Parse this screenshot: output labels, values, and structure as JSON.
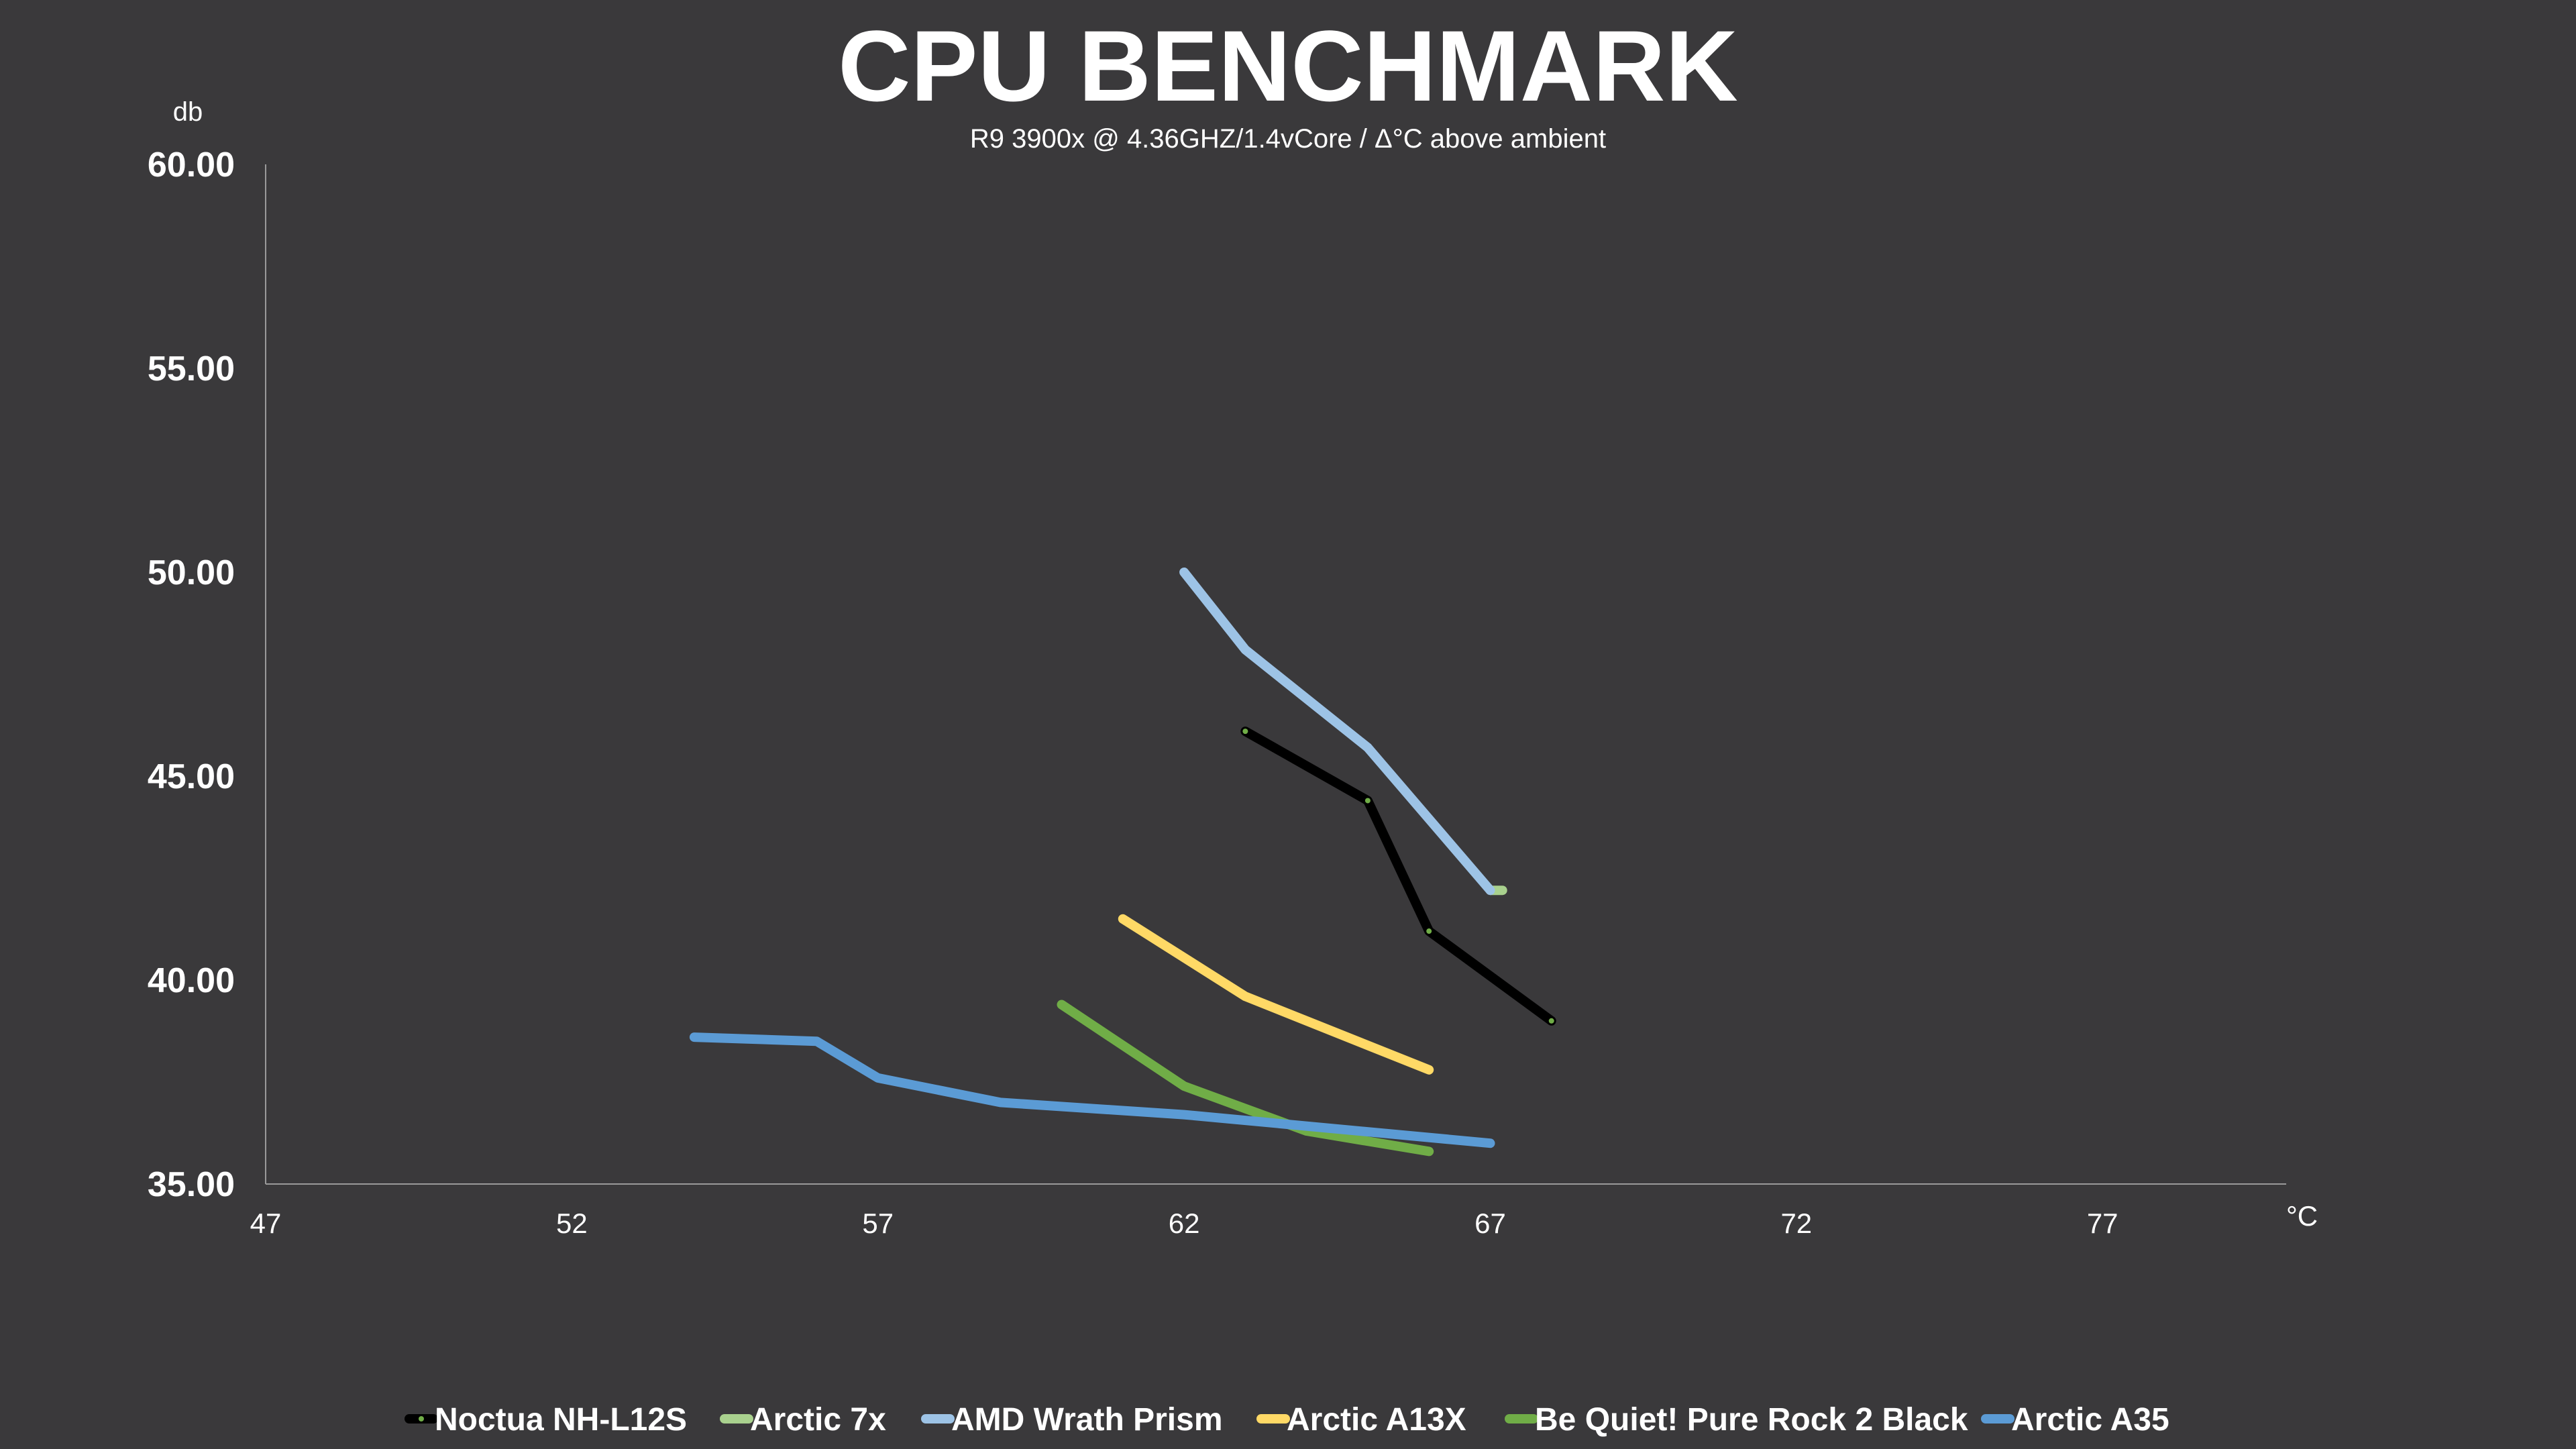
{
  "chart_data": {
    "type": "line",
    "title": "CPU BENCHMARK",
    "subtitle": "R9 3900x @ 4.36GHZ/1.4vCore   /  Δ°C above ambient",
    "ylabel": "db",
    "xlabel": "°C",
    "xlim": [
      47,
      80
    ],
    "ylim": [
      35,
      60
    ],
    "x_ticks": [
      "47",
      "52",
      "57",
      "62",
      "67",
      "72",
      "77"
    ],
    "y_ticks": [
      "60.00",
      "55.00",
      "50.00",
      "45.00",
      "40.00",
      "35.00"
    ],
    "grid": false,
    "legend_position": "bottom",
    "series": [
      {
        "name": "Noctua NH-L12S",
        "color": "#000000",
        "marker": true,
        "points": [
          [
            63,
            46.1
          ],
          [
            65,
            44.4
          ],
          [
            66,
            41.2
          ],
          [
            68,
            39.0
          ]
        ]
      },
      {
        "name": "Arctic 7x",
        "color": "#a9d18e",
        "marker": false,
        "points": [
          [
            67,
            42.2
          ],
          [
            67.2,
            42.2
          ]
        ]
      },
      {
        "name": "AMD Wrath Prism",
        "color": "#9dc3e6",
        "marker": false,
        "points": [
          [
            62,
            50.0
          ],
          [
            63,
            48.1
          ],
          [
            65,
            45.7
          ],
          [
            67,
            42.2
          ]
        ]
      },
      {
        "name": "Arctic A13X",
        "color": "#ffd966",
        "marker": false,
        "points": [
          [
            61,
            41.5
          ],
          [
            63,
            39.6
          ],
          [
            66,
            37.8
          ]
        ]
      },
      {
        "name": "Be Quiet! Pure Rock 2 Black",
        "color": "#70ad47",
        "marker": false,
        "points": [
          [
            60,
            39.4
          ],
          [
            62,
            37.4
          ],
          [
            64,
            36.3
          ],
          [
            66,
            35.8
          ]
        ]
      },
      {
        "name": "Arctic A35",
        "color": "#5b9bd5",
        "marker": false,
        "points": [
          [
            54,
            38.6
          ],
          [
            56,
            38.5
          ],
          [
            57,
            37.6
          ],
          [
            59,
            37.0
          ],
          [
            62,
            36.7
          ],
          [
            67,
            36.0
          ]
        ]
      }
    ]
  }
}
